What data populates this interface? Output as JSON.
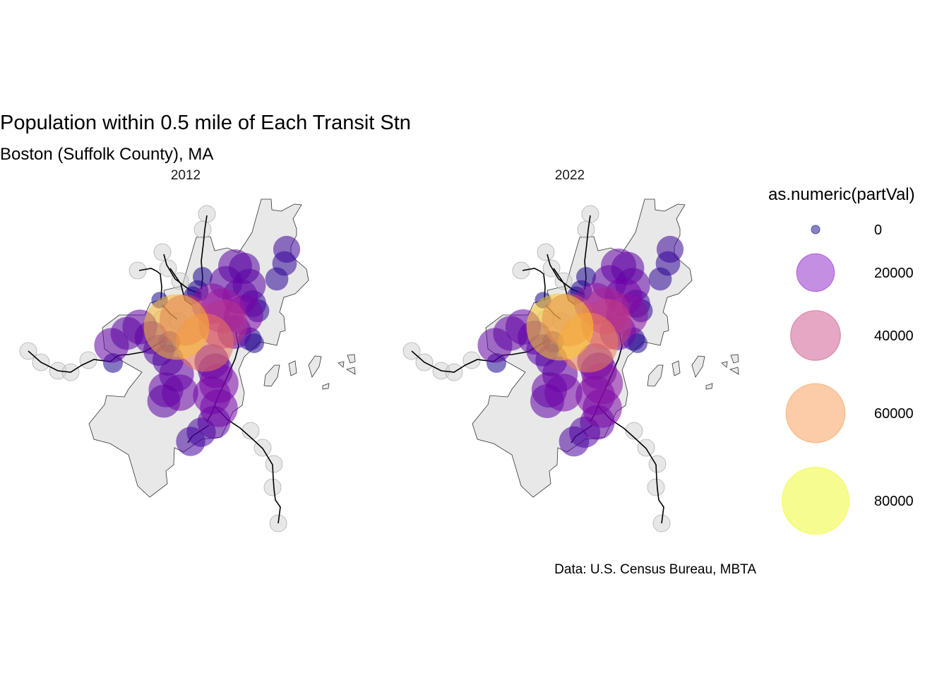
{
  "title": "Population within 0.5 mile of Each Transit Stn",
  "subtitle": "Boston (Suffolk County), MA",
  "caption": "Data: U.S. Census Bureau, MBTA",
  "facets": [
    {
      "label": "2012"
    },
    {
      "label": "2022"
    }
  ],
  "legend": {
    "title": "as.numeric(partVal)",
    "placement": "right",
    "entries": [
      {
        "label": "0",
        "value": 0,
        "color": "#0d0887"
      },
      {
        "label": "20000",
        "value": 20000,
        "color": "#8a1fc8"
      },
      {
        "label": "40000",
        "value": 40000,
        "color": "#cc4f88"
      },
      {
        "label": "60000",
        "value": 60000,
        "color": "#f79a50"
      },
      {
        "label": "80000",
        "value": 80000,
        "color": "#f0f921"
      }
    ]
  },
  "colors": {
    "county_fill": "#e8e8e8",
    "county_stroke": "#333333",
    "empty_station": "#d3d3d3",
    "line": "#000000",
    "palette": "plasma"
  }
}
